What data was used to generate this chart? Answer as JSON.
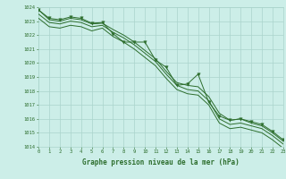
{
  "x": [
    0,
    1,
    2,
    3,
    4,
    5,
    6,
    7,
    8,
    9,
    10,
    11,
    12,
    13,
    14,
    15,
    16,
    17,
    18,
    19,
    20,
    21,
    22,
    23
  ],
  "line1": [
    1023.8,
    1023.1,
    1023.0,
    1023.2,
    1023.1,
    1022.8,
    1022.85,
    1022.4,
    1022.0,
    1021.5,
    1020.9,
    1020.3,
    1019.4,
    1018.6,
    1018.4,
    1018.3,
    1017.6,
    1016.4,
    1015.9,
    1016.0,
    1015.7,
    1015.5,
    1015.0,
    1014.4
  ],
  "line2": [
    1023.5,
    1022.9,
    1022.8,
    1023.0,
    1022.9,
    1022.6,
    1022.7,
    1022.2,
    1021.8,
    1021.3,
    1020.7,
    1020.1,
    1019.2,
    1018.4,
    1018.1,
    1018.0,
    1017.3,
    1016.0,
    1015.6,
    1015.7,
    1015.5,
    1015.3,
    1014.8,
    1014.2
  ],
  "line3": [
    1023.2,
    1022.6,
    1022.5,
    1022.7,
    1022.6,
    1022.3,
    1022.5,
    1021.9,
    1021.5,
    1021.0,
    1020.4,
    1019.8,
    1018.9,
    1018.1,
    1017.8,
    1017.7,
    1017.0,
    1015.7,
    1015.3,
    1015.4,
    1015.2,
    1015.0,
    1014.5,
    1013.9
  ],
  "marker_x": [
    0,
    1,
    2,
    3,
    4,
    5,
    6,
    7,
    8,
    9,
    10,
    11,
    12,
    13,
    14,
    15,
    16,
    17,
    18,
    19,
    20,
    21,
    22,
    23
  ],
  "marker_y": [
    1023.8,
    1023.2,
    1023.1,
    1023.3,
    1023.2,
    1022.85,
    1022.9,
    1022.1,
    1021.5,
    1021.5,
    1021.5,
    1020.2,
    1019.7,
    1018.4,
    1018.5,
    1019.2,
    1017.2,
    1016.2,
    1015.9,
    1016.0,
    1015.8,
    1015.6,
    1015.1,
    1014.5
  ],
  "line_color": "#2d6e2d",
  "bg_color": "#cceee8",
  "grid_color": "#aad4cc",
  "xlabel": "Graphe pression niveau de la mer (hPa)",
  "ylim_min": 1014,
  "ylim_max": 1024,
  "xlim_min": 0,
  "xlim_max": 23
}
